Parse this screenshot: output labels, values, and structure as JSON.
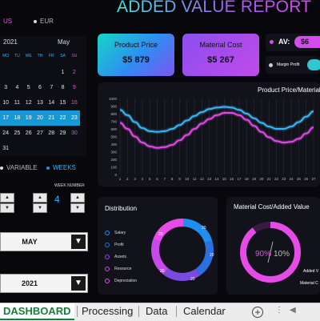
{
  "header": {
    "title": "ADDED VALUE REPORT"
  },
  "currency": {
    "options": [
      "US",
      "EUR"
    ]
  },
  "calendar": {
    "year": "2021",
    "month": "May",
    "weekdays": [
      "MO",
      "TU",
      "WE",
      "TH",
      "FR",
      "SA",
      "SU"
    ],
    "days": [
      "",
      "",
      "",
      "",
      "",
      "1",
      "2",
      "3",
      "4",
      "5",
      "6",
      "7",
      "8",
      "9",
      "10",
      "11",
      "12",
      "13",
      "14",
      "15",
      "16",
      "17",
      "18",
      "19",
      "20",
      "21",
      "22",
      "23",
      "24",
      "25",
      "26",
      "27",
      "28",
      "29",
      "30",
      "31"
    ],
    "highlighted": [
      "17",
      "18",
      "19",
      "20",
      "21",
      "22",
      "23"
    ]
  },
  "view_mode": {
    "variable": "VARIABLE",
    "weeks": "WEEKS"
  },
  "week_number": {
    "label": "WEEK NUMBER",
    "value": "4"
  },
  "selectors": {
    "month": "MAY",
    "year": "2021"
  },
  "cards": {
    "product_price": {
      "label": "Product Price",
      "value": "$5 879"
    },
    "material_cost": {
      "label": "Material Cost",
      "value": "$5 267"
    }
  },
  "av": {
    "label": "AV:",
    "value": "$6",
    "margin_label": "Margin Profit"
  },
  "line_chart_title": "Product Price/Material",
  "distribution": {
    "title": "Distribution",
    "items": [
      {
        "label": "Salary",
        "color": "#1e8ef0"
      },
      {
        "label": "Profit",
        "color": "#2b6fe0"
      },
      {
        "label": "Assets",
        "color": "#8a4af0"
      },
      {
        "label": "Resource",
        "color": "#c44be8"
      },
      {
        "label": "Depreciation",
        "color": "#e64be8"
      }
    ],
    "pct_labels": [
      "20",
      "20",
      "20",
      "20",
      "20"
    ]
  },
  "material_added": {
    "title": "Material Cost/Added Value",
    "left_pct": "90%",
    "right_pct": "10%",
    "legend": [
      "Added V",
      "Material C"
    ]
  },
  "chart_data": {
    "type": "line",
    "title": "Product Price/Material",
    "x": [
      1,
      2,
      3,
      4,
      5,
      6,
      7,
      8,
      9,
      10,
      11,
      12,
      13,
      14,
      15,
      16,
      17,
      18,
      19,
      20,
      21,
      22,
      23,
      24,
      25,
      26,
      27
    ],
    "ylim": [
      0,
      1000
    ],
    "yticks": [
      0,
      100,
      200,
      300,
      400,
      500,
      600,
      700,
      800,
      900,
      1000
    ],
    "series": [
      {
        "color": "#3ab8f5",
        "values": [
          850,
          780,
          690,
          610,
          570,
          560,
          570,
          600,
          650,
          710,
          770,
          820,
          860,
          880,
          890,
          880,
          850,
          800,
          740,
          680,
          630,
          600,
          600,
          630,
          690,
          760,
          830
        ]
      },
      {
        "color": "#e04be8",
        "values": [
          680,
          600,
          500,
          420,
          370,
          350,
          360,
          390,
          450,
          520,
          600,
          670,
          730,
          780,
          810,
          810,
          780,
          720,
          640,
          560,
          490,
          440,
          420,
          430,
          470,
          540,
          620
        ]
      }
    ]
  },
  "sheet_tabs": [
    "DASHBOARD",
    "Processing",
    "Data",
    "Calendar"
  ]
}
